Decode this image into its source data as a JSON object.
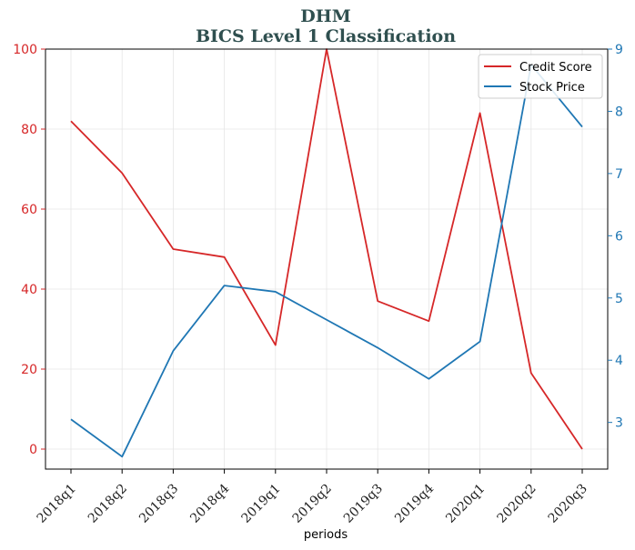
{
  "chart_data": {
    "type": "line",
    "title": "DHM",
    "subtitle": "BICS Level 1 Classification",
    "xlabel": "periods",
    "categories": [
      "2018q1",
      "2018q2",
      "2018q3",
      "2018q4",
      "2019q1",
      "2019q2",
      "2019q3",
      "2019q4",
      "2020q1",
      "2020q2",
      "2020q3"
    ],
    "series": [
      {
        "name": "Credit Score",
        "axis": "left",
        "color": "#d62728",
        "values": [
          82,
          69,
          50,
          48,
          26,
          100,
          37,
          32,
          84,
          19,
          0
        ]
      },
      {
        "name": "Stock Price",
        "axis": "right",
        "color": "#1f77b4",
        "values": [
          3.05,
          2.45,
          4.15,
          5.2,
          5.1,
          4.65,
          4.2,
          3.7,
          4.3,
          8.75,
          7.75
        ]
      }
    ],
    "y_left": {
      "ylim": [
        -5,
        100
      ],
      "ticks": [
        "0",
        "20",
        "40",
        "60",
        "80",
        "100"
      ],
      "color": "#d62728"
    },
    "y_right": {
      "ylim": [
        2.25,
        9
      ],
      "ticks": [
        "3",
        "4",
        "5",
        "6",
        "7",
        "8",
        "9"
      ],
      "color": "#1f77b4"
    },
    "grid": true,
    "legend_position": "top-right"
  }
}
